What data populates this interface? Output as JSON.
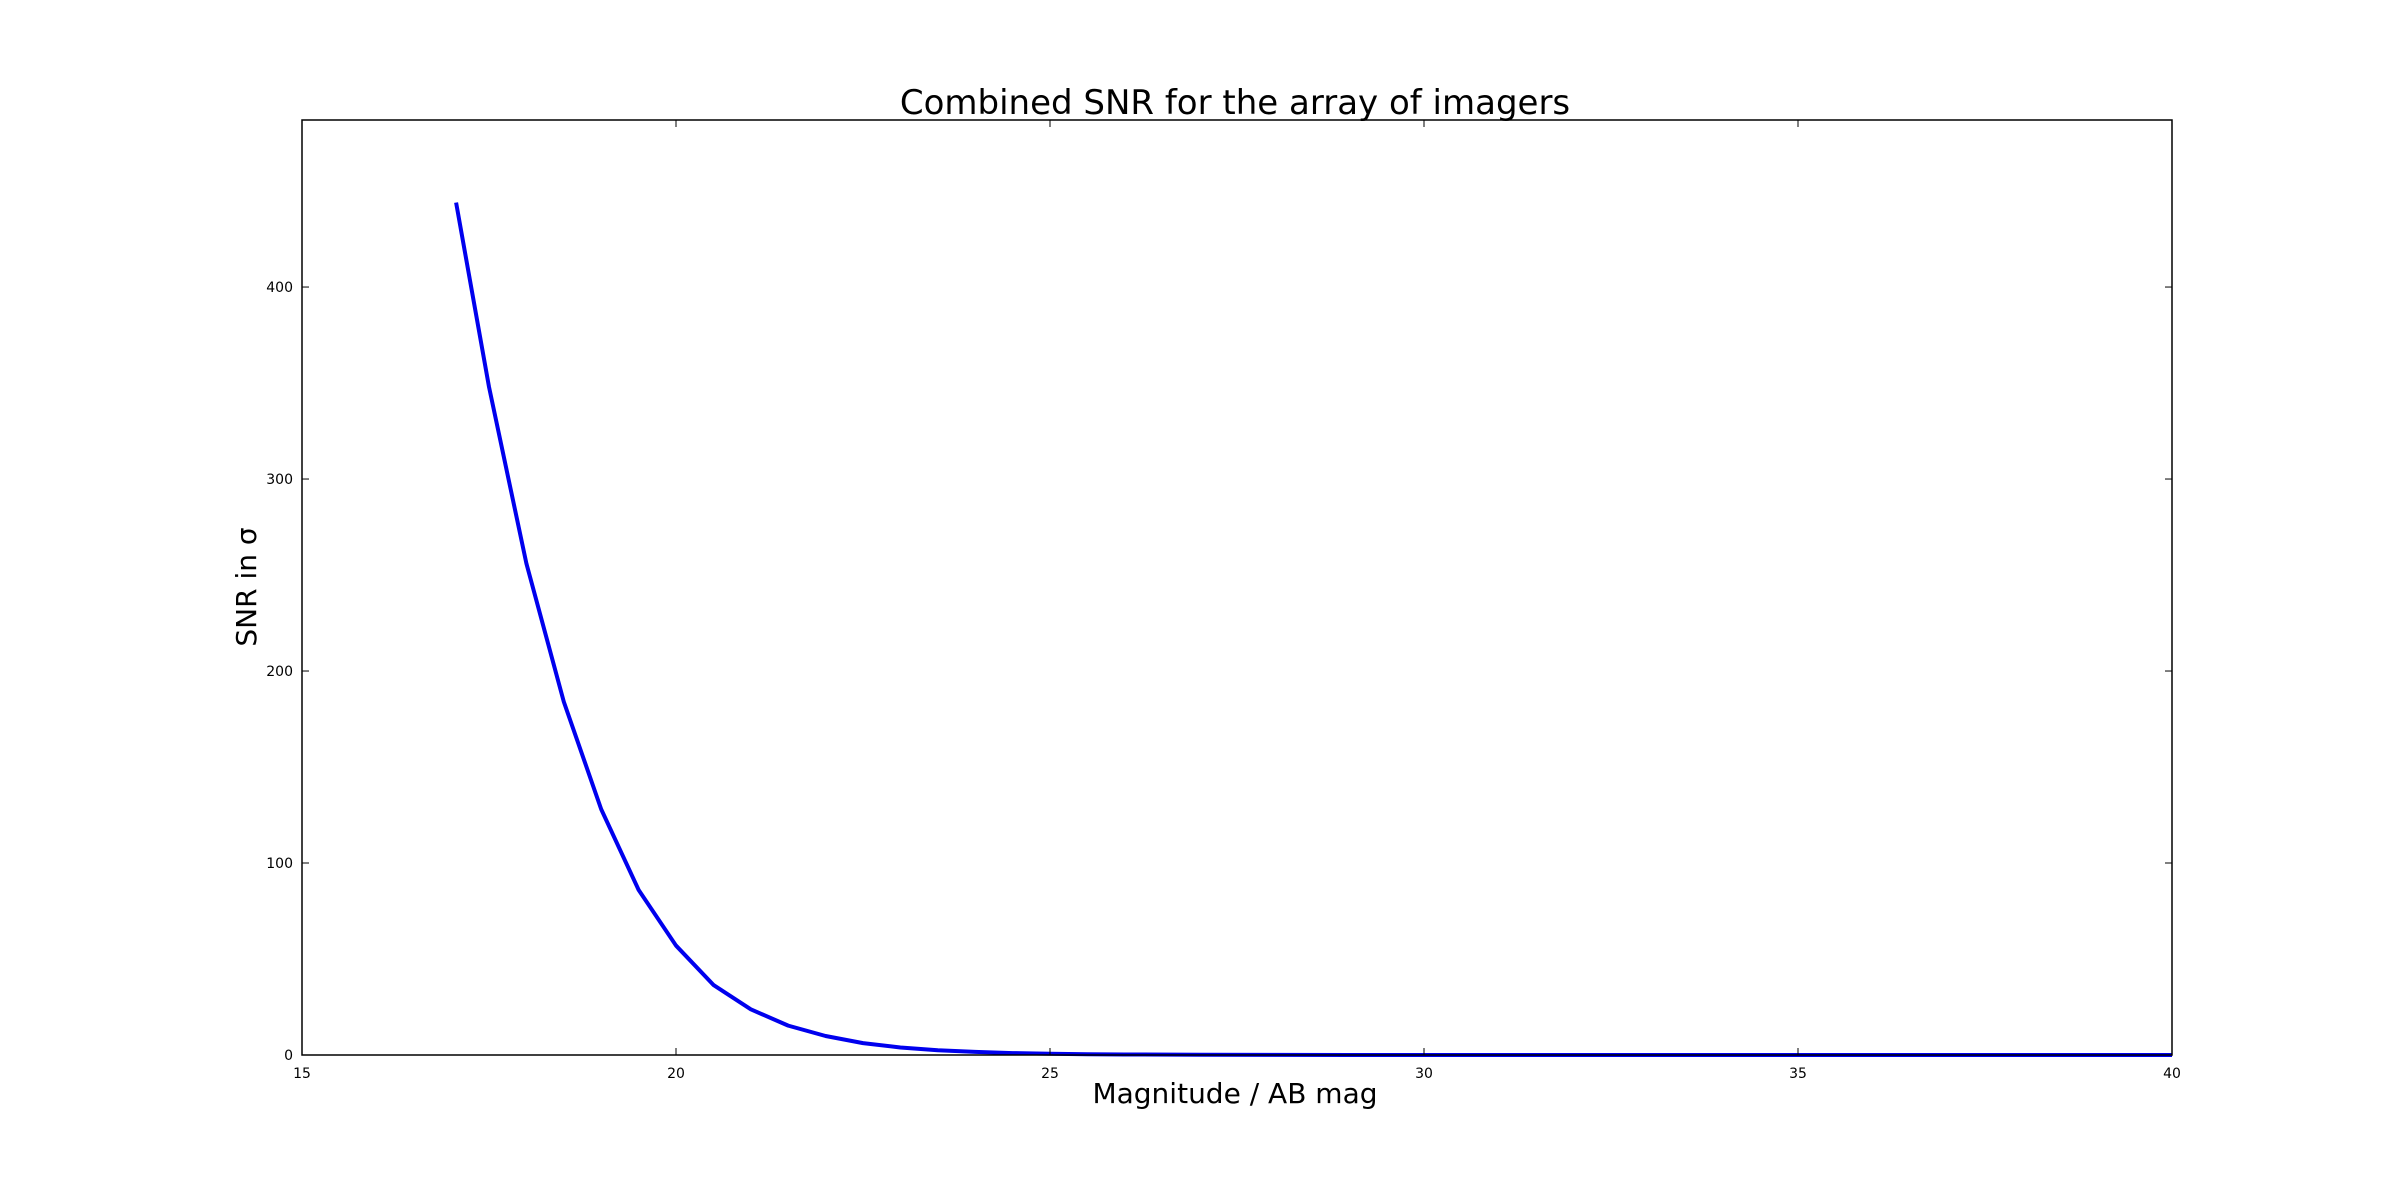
{
  "chart_data": {
    "type": "line",
    "title": "Combined SNR for the array of imagers",
    "xlabel": "Magnitude / AB mag",
    "ylabel": "SNR in σ",
    "xlim": [
      15,
      40
    ],
    "ylim": [
      0,
      487
    ],
    "x_ticks": [
      15,
      20,
      25,
      30,
      35,
      40
    ],
    "y_ticks": [
      0,
      100,
      200,
      300,
      400
    ],
    "x_tick_labels": [
      "15",
      "20",
      "25",
      "30",
      "35",
      "40"
    ],
    "y_tick_labels": [
      "0",
      "100",
      "200",
      "300",
      "400"
    ],
    "grid": false,
    "legend": "none",
    "series": [
      {
        "color": "#0000ee",
        "x": [
          17.06,
          17.5,
          18,
          18.5,
          19,
          19.5,
          20,
          20.5,
          21,
          21.5,
          22,
          22.5,
          23,
          23.5,
          24,
          24.5,
          25,
          25.5,
          26,
          27,
          28,
          29,
          30,
          32,
          35,
          38,
          40
        ],
        "y": [
          444,
          348,
          256,
          184,
          128,
          86,
          57,
          36.5,
          23.8,
          15.3,
          9.9,
          6.2,
          3.9,
          2.5,
          1.6,
          1.0,
          0.65,
          0.42,
          0.27,
          0.11,
          0.045,
          0.02,
          0.01,
          0.002,
          0.0003,
          0.0001,
          0.0001
        ]
      }
    ]
  }
}
